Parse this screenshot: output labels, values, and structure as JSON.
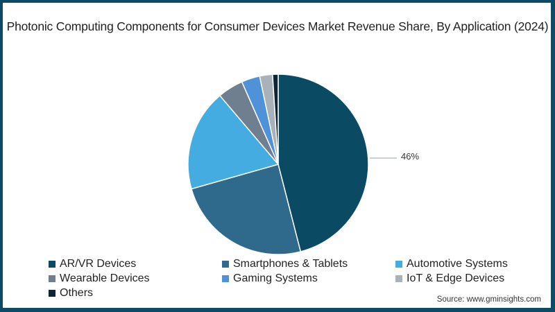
{
  "title": "Photonic Computing Components for Consumer Devices Market Revenue Share, By Application (2024)",
  "source": "Source: www.gminsights.com",
  "label_ar_vr": "46%",
  "chart_data": {
    "type": "pie",
    "title": "Photonic Computing Components for Consumer Devices Market Revenue Share, By Application (2024)",
    "categories": [
      "AR/VR Devices",
      "Smartphones & Tablets",
      "Automotive Systems",
      "Wearable Devices",
      "Gaming Systems",
      "IoT & Edge Devices",
      "Others"
    ],
    "values": [
      46,
      24.6,
      18.2,
      4.6,
      3.3,
      2.3,
      1.0
    ],
    "colors": [
      "#0a4a63",
      "#2f6a8c",
      "#44ace0",
      "#6f7f8f",
      "#4f92d8",
      "#a9b1b9",
      "#0d2535"
    ],
    "data_labels": {
      "AR/VR Devices": "46%"
    },
    "legend_position": "bottom"
  },
  "legend": [
    {
      "label": "AR/VR Devices",
      "color": "#0a4a63"
    },
    {
      "label": "Smartphones & Tablets",
      "color": "#2f6a8c"
    },
    {
      "label": "Automotive Systems",
      "color": "#44ace0"
    },
    {
      "label": "Wearable Devices",
      "color": "#6f7f8f"
    },
    {
      "label": "Gaming Systems",
      "color": "#4f92d8"
    },
    {
      "label": " IoT & Edge Devices",
      "color": "#a9b1b9"
    },
    {
      "label": "Others",
      "color": "#0d2535"
    }
  ]
}
